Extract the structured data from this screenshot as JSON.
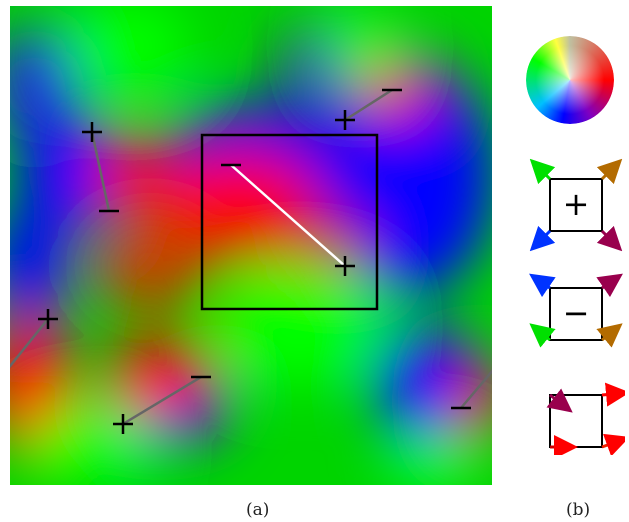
{
  "captions": {
    "a": "(a)",
    "b": "(b)"
  },
  "charge_symbols": {
    "plus": "+",
    "minus": "−"
  },
  "colors": {
    "red": "#ff0000",
    "green": "#00e000",
    "blue": "#0000ff",
    "purple": "#99004d",
    "orange": "#b36b00",
    "frame": "#000000",
    "highlight_line": "#ffffff",
    "pair_line": "#666666"
  },
  "legend": [
    {
      "name": "color-wheel"
    },
    {
      "name": "plus-charge",
      "symbol": "+",
      "arrows": [
        "green",
        "orange",
        "blue",
        "purple"
      ]
    },
    {
      "name": "minus-charge",
      "symbol": "−",
      "arrows": [
        "blue",
        "purple",
        "green",
        "orange"
      ]
    },
    {
      "name": "vector-square",
      "arrows": [
        "purple",
        "red",
        "red",
        "red"
      ]
    }
  ]
}
